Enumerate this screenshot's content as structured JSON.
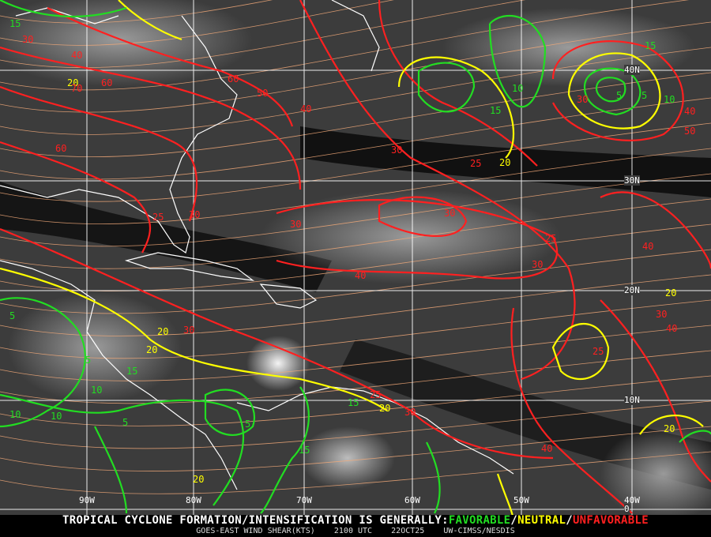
{
  "banner": {
    "prefix": "TROPICAL CYCLONE FORMATION/INTENSIFICATION IS GENERALLY:",
    "favorable": "FAVORABLE",
    "neutral": "NEUTRAL",
    "unfavorable": "UNFAVORABLE",
    "slash": "/",
    "product": "GOES-EAST WIND SHEAR(KTS)",
    "time": "2100 UTC",
    "date": "22OCT25",
    "source": "UW-CIMSS/NESDIS"
  },
  "grid": {
    "longitudes": [
      "90W",
      "80W",
      "70W",
      "60W",
      "50W",
      "40W"
    ],
    "latitudes": [
      "40N",
      "30N",
      "20N",
      "10N",
      "0"
    ]
  },
  "colors": {
    "favorable": "#22dd22",
    "neutral": "#ffff00",
    "unfavorable": "#ff2020",
    "streamlines": "#f0a878",
    "coastlines": "#ffffff",
    "background": "#3a3a3a"
  },
  "contour_labels": [
    "5",
    "10",
    "15",
    "20",
    "30",
    "40",
    "60",
    "70",
    "60",
    "50",
    "60",
    "40",
    "30",
    "30",
    "25",
    "20",
    "15",
    "10",
    "5",
    "5",
    "10",
    "30",
    "40",
    "50",
    "30",
    "40",
    "25",
    "20",
    "25",
    "30",
    "40",
    "20",
    "30",
    "15",
    "20",
    "25",
    "30",
    "40",
    "20",
    "10",
    "5",
    "15",
    "20",
    "5",
    "15",
    "10",
    "5",
    "30",
    "40",
    "30",
    "25",
    "20",
    "15"
  ],
  "contour_levels": [
    5,
    10,
    15,
    20,
    25,
    30,
    40,
    50,
    60,
    70
  ]
}
